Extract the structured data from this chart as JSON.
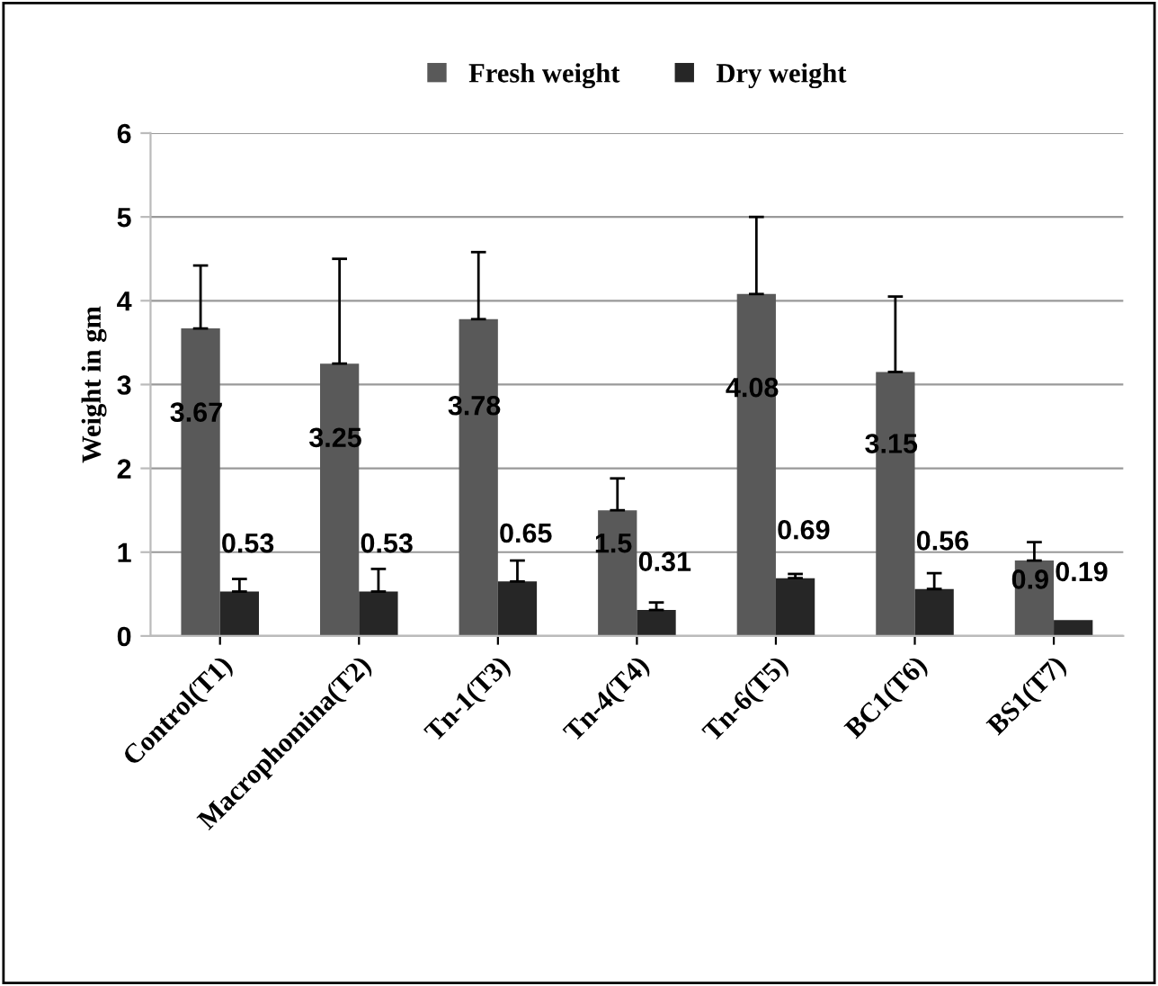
{
  "chart_data": {
    "type": "bar",
    "ylabel": "Weight in gm",
    "categories": [
      "Control(T1)",
      "Macrophomina(T2)",
      "Tn-1(T3)",
      "Tn-4(T4)",
      "Tn-6(T5)",
      "BC1(T6)",
      "BS1(T7)"
    ],
    "series": [
      {
        "name": "Fresh weight",
        "color": "#595959",
        "values": [
          3.67,
          3.25,
          3.78,
          1.5,
          4.08,
          3.15,
          0.9
        ],
        "errors": [
          [
            3.67,
            4.42
          ],
          [
            3.25,
            4.5
          ],
          [
            3.78,
            4.58
          ],
          [
            1.5,
            1.88
          ],
          [
            4.08,
            5.0
          ],
          [
            3.15,
            4.05
          ],
          [
            0.9,
            1.12
          ]
        ]
      },
      {
        "name": "Dry weight",
        "color": "#262626",
        "values": [
          0.53,
          0.53,
          0.65,
          0.31,
          0.69,
          0.56,
          0.19
        ],
        "errors": [
          [
            0.53,
            0.68
          ],
          [
            0.53,
            0.8
          ],
          [
            0.65,
            0.9
          ],
          [
            0.31,
            0.4
          ],
          [
            0.69,
            0.74
          ],
          [
            0.56,
            0.75
          ],
          null
        ]
      }
    ],
    "ylim": [
      0,
      6
    ],
    "yticks": [
      0,
      1,
      2,
      3,
      4,
      5,
      6
    ],
    "grid": "y",
    "legend": "top",
    "data_labels": true
  }
}
